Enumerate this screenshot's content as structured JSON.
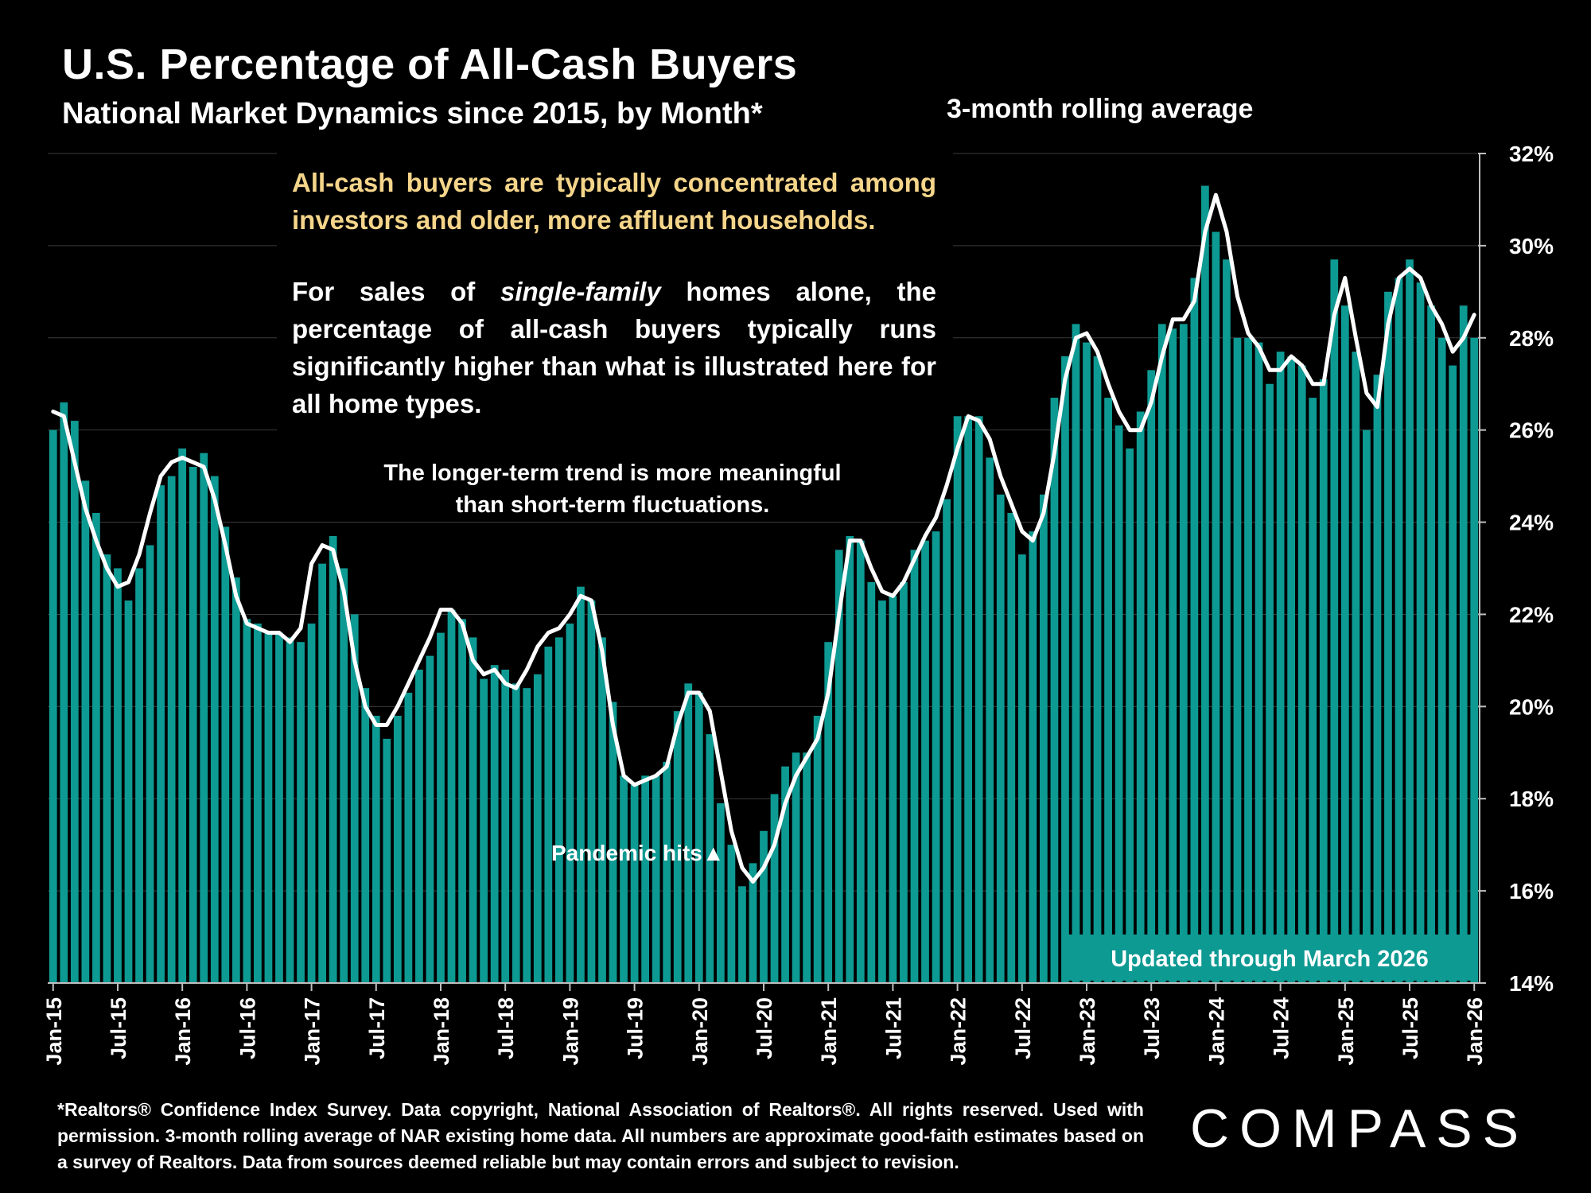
{
  "title": "U.S. Percentage of All-Cash Buyers",
  "subtitle": "National Market Dynamics since 2015, by Month*",
  "rolling_label": "3-month rolling average",
  "note_cash": "All-cash buyers are typically concentrated among investors and older, more affluent households.",
  "note_sf": {
    "part1": "For sales of ",
    "emph": "single-family",
    "part2": " homes alone, the percentage of all-cash buyers typically runs significantly higher than what is illustrated here for all home types."
  },
  "note_trend": {
    "line1": "The longer-term trend is more meaningful",
    "line2": "than short-term fluctuations."
  },
  "pandemic_label": "Pandemic hits",
  "pandemic_marker": "▲",
  "updated_label": "Updated through March 2026",
  "footnote": "*Realtors® Confidence Index Survey. Data copyright, National Association of Realtors®. All rights reserved. Used with permission. 3-month rolling average of NAR existing home data. All numbers are approximate good-faith estimates based on a survey of Realtors. Data from sources deemed reliable but may contain errors and subject to revision.",
  "logo": "COMPASS",
  "colors": {
    "bar": "#0d9a93",
    "line": "#ffffff",
    "note_highlight": "#f4d58a",
    "background": "#000000"
  },
  "chart_data": {
    "type": "bar",
    "x_start": "Jan-15",
    "x_end": "Mar-26",
    "ylim": [
      14,
      32
    ],
    "yticks": [
      "14%",
      "16%",
      "18%",
      "20%",
      "22%",
      "24%",
      "26%",
      "28%",
      "30%",
      "32%"
    ],
    "xticks": [
      "Jan-15",
      "Jul-15",
      "Jan-16",
      "Jul-16",
      "Jan-17",
      "Jul-17",
      "Jan-18",
      "Jul-18",
      "Jan-19",
      "Jul-19",
      "Jan-20",
      "Jul-20",
      "Jan-21",
      "Jul-21",
      "Jan-22",
      "Jul-22",
      "Jan-23",
      "Jul-23",
      "Jan-24",
      "Jul-24",
      "Jan-25",
      "Jul-25",
      "Jan-26"
    ],
    "grid": true,
    "y_axis_side": "right",
    "series": [
      {
        "type": "bar",
        "values": [
          26.0,
          26.6,
          26.2,
          24.9,
          24.2,
          23.3,
          23.0,
          22.3,
          23.0,
          23.5,
          24.8,
          25.0,
          25.6,
          25.2,
          25.5,
          25.0,
          23.9,
          22.8,
          21.9,
          21.8,
          21.6,
          21.6,
          21.5,
          21.4,
          21.8,
          23.1,
          23.7,
          23.0,
          22.0,
          20.4,
          19.8,
          19.3,
          19.8,
          20.3,
          20.8,
          21.1,
          21.6,
          22.1,
          21.9,
          21.5,
          20.6,
          20.9,
          20.8,
          20.5,
          20.4,
          20.7,
          21.3,
          21.5,
          21.8,
          22.6,
          22.3,
          21.5,
          20.1,
          18.5,
          18.3,
          18.5,
          18.5,
          18.8,
          19.9,
          20.5,
          20.3,
          19.4,
          17.9,
          17.0,
          16.1,
          16.6,
          17.3,
          18.1,
          18.7,
          19.0,
          19.0,
          19.8,
          21.4,
          23.4,
          23.7,
          23.6,
          22.7,
          22.3,
          22.4,
          22.7,
          23.4,
          23.6,
          23.8,
          24.5,
          26.3,
          26.3,
          26.3,
          25.4,
          24.6,
          24.2,
          23.3,
          23.8,
          24.6,
          26.7,
          27.6,
          28.3,
          27.9,
          27.6,
          26.7,
          26.1,
          25.6,
          26.4,
          27.3,
          28.3,
          28.2,
          28.3,
          29.3,
          31.3,
          30.3,
          29.7,
          28.0,
          28.0,
          27.9,
          27.0,
          27.7,
          27.6,
          27.4,
          26.7,
          27.1,
          29.7,
          28.7,
          27.7,
          26.0,
          27.2,
          29.0,
          29.3,
          29.7,
          29.2,
          28.7,
          28.0,
          27.4,
          28.7,
          28.0
        ]
      },
      {
        "type": "line",
        "values": [
          26.4,
          26.3,
          25.3,
          24.3,
          23.6,
          23.0,
          22.6,
          22.7,
          23.3,
          24.2,
          25.0,
          25.3,
          25.4,
          25.3,
          25.2,
          24.5,
          23.5,
          22.4,
          21.8,
          21.7,
          21.6,
          21.6,
          21.4,
          21.7,
          23.1,
          23.5,
          23.4,
          22.5,
          21.0,
          20.0,
          19.6,
          19.6,
          20.0,
          20.5,
          21.0,
          21.5,
          22.1,
          22.1,
          21.8,
          21.0,
          20.7,
          20.8,
          20.5,
          20.4,
          20.8,
          21.3,
          21.6,
          21.7,
          22.0,
          22.4,
          22.3,
          21.2,
          19.6,
          18.5,
          18.3,
          18.4,
          18.5,
          18.7,
          19.6,
          20.3,
          20.3,
          19.9,
          18.6,
          17.3,
          16.5,
          16.2,
          16.5,
          17.0,
          17.9,
          18.5,
          18.9,
          19.3,
          20.3,
          22.0,
          23.6,
          23.6,
          23.0,
          22.5,
          22.4,
          22.7,
          23.2,
          23.7,
          24.1,
          24.8,
          25.6,
          26.3,
          26.2,
          25.8,
          25.0,
          24.4,
          23.8,
          23.6,
          24.2,
          25.5,
          27.1,
          28.0,
          28.1,
          27.7,
          27.0,
          26.4,
          26.0,
          26.0,
          26.6,
          27.6,
          28.4,
          28.4,
          28.8,
          30.3,
          31.1,
          30.3,
          28.9,
          28.1,
          27.8,
          27.3,
          27.3,
          27.6,
          27.4,
          27.0,
          27.0,
          28.5,
          29.3,
          28.0,
          26.8,
          26.5,
          28.3,
          29.3,
          29.5,
          29.3,
          28.7,
          28.3,
          27.7,
          28.0,
          28.5
        ]
      }
    ],
    "annotations": [
      "Pandemic hits ▲",
      "Updated through March 2026"
    ]
  }
}
